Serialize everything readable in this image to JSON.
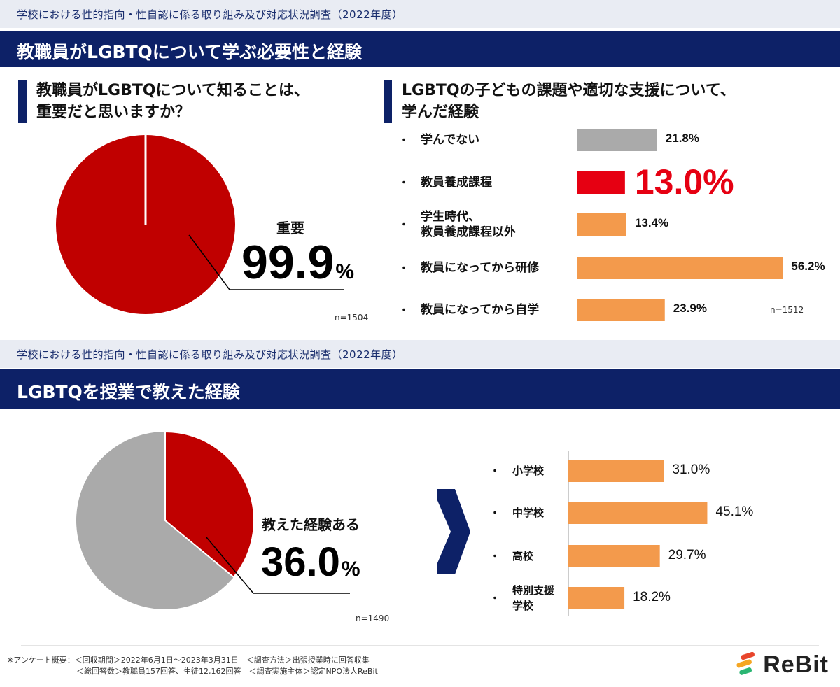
{
  "section1": {
    "survey_title": "学校における性的指向・性自認に係る取り組み及び対応状況調査（2022年度）",
    "banner_title": "教職員がLGBTQについて学ぶ必要性と経験",
    "left_heading": "教職員がLGBTQについて知ることは、\n重要だと思いますか？",
    "right_heading": "LGBTQの子どもの課題や適切な支援について、\n学んだ経験"
  },
  "section2": {
    "survey_title": "学校における性的指向・性自認に係る取り組み及び対応状況調査（2022年度）",
    "banner_title": "LGBTQを授業で教えた経験"
  },
  "colors": {
    "navy": "#0d2167",
    "red": "#c00000",
    "bright_red": "#e60012",
    "gray": "#aaaaaa",
    "orange": "#f39a4c"
  },
  "chart_data": [
    {
      "type": "pie",
      "labels": [
        "重要"
      ],
      "values": [
        99.9
      ],
      "value_label": "99.9",
      "unit": "%",
      "n": "n=1504"
    },
    {
      "type": "bar",
      "orientation": "horizontal",
      "bullet": "・",
      "categories": [
        "学んでない",
        "教員養成課程",
        "学生時代、\n教員養成課程以外",
        "教員になってから研修",
        "教員になってから自学"
      ],
      "values": [
        21.8,
        13.0,
        13.4,
        56.2,
        23.9
      ],
      "value_labels": [
        "21.8%",
        "13.0%",
        "13.4%",
        "56.2%",
        "23.9%"
      ],
      "bar_colors": [
        "#aaaaaa",
        "#e60012",
        "#f39a4c",
        "#f39a4c",
        "#f39a4c"
      ],
      "n": "n=1512"
    },
    {
      "type": "pie",
      "labels": [
        "教えた経験ある"
      ],
      "values": [
        36.0
      ],
      "value_label": "36.0",
      "unit": "%",
      "n": "n=1490"
    },
    {
      "type": "bar",
      "orientation": "horizontal",
      "bullet": "・",
      "categories": [
        "小学校",
        "中学校",
        "高校",
        "特別支援\n学校"
      ],
      "values": [
        31.0,
        45.1,
        29.7,
        18.2
      ],
      "value_labels": [
        "31.0%",
        "45.1%",
        "29.7%",
        "18.2%"
      ],
      "bar_color": "#f39a4c"
    }
  ],
  "footnote": {
    "line1": "※アンケート概要：＜回収期間＞2022年6月1日〜2023年3月31日　＜調査方法＞出張授業時に回答収集",
    "line2": "　　　　　　　　　＜総回答数＞教職員157回答、生徒12,162回答　＜調査実施主体＞認定NPO法人ReBit"
  },
  "logo": {
    "text": "ReBit"
  }
}
